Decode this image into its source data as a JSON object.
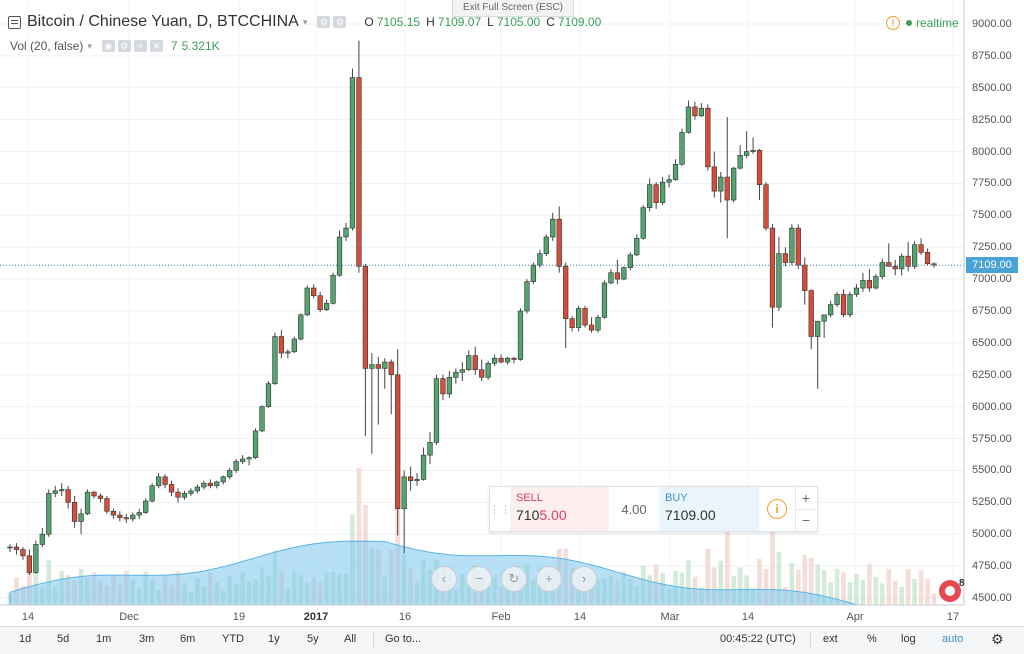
{
  "header": {
    "title": "Bitcoin / Chinese Yuan, D, BTCCHINA",
    "ohlc": [
      {
        "k": "O",
        "v": "7105.15"
      },
      {
        "k": "H",
        "v": "7109.07"
      },
      {
        "k": "L",
        "v": "7105.00"
      },
      {
        "k": "C",
        "v": "7109.00"
      }
    ],
    "exit_fullscreen": "Exit Full Screen (ESC)",
    "realtime": "realtime",
    "colors": {
      "up": "#53a46e",
      "down": "#d44f3b",
      "price_line": "#3a7ea8",
      "accent": "#4aa3d7"
    }
  },
  "volume": {
    "label": "Vol (20, false)",
    "count": "7",
    "value": "5.321K"
  },
  "price_axis": {
    "labels": [
      "9000.00",
      "8750.00",
      "8500.00",
      "8250.00",
      "8000.00",
      "7750.00",
      "7500.00",
      "7250.00",
      "7000.00",
      "6750.00",
      "6500.00",
      "6250.00",
      "6000.00",
      "5750.00",
      "5500.00",
      "5250.00",
      "5000.00",
      "4750.00",
      "4500.00"
    ],
    "current_price": "7109.00"
  },
  "time_axis": {
    "labels": [
      {
        "t": "14",
        "x": 28
      },
      {
        "t": "Dec",
        "x": 129
      },
      {
        "t": "19",
        "x": 239
      },
      {
        "t": "2017",
        "x": 316,
        "bold": true
      },
      {
        "t": "16",
        "x": 405
      },
      {
        "t": "Feb",
        "x": 501
      },
      {
        "t": "14",
        "x": 580
      },
      {
        "t": "Mar",
        "x": 670
      },
      {
        "t": "14",
        "x": 748
      },
      {
        "t": "Apr",
        "x": 855
      },
      {
        "t": "17",
        "x": 953
      }
    ]
  },
  "trade": {
    "sell_label": "SELL",
    "sell_a": "710",
    "sell_b": "5.00",
    "spread": "4.00",
    "buy_label": "BUY",
    "buy_value": "7109.00",
    "plus": "+",
    "minus": "−"
  },
  "nav": [
    "‹",
    "−",
    "↻",
    "+",
    "›"
  ],
  "toolbar": {
    "ranges": [
      "1d",
      "5d",
      "1m",
      "3m",
      "6m",
      "YTD",
      "1y",
      "5y",
      "All"
    ],
    "goto": "Go to...",
    "clock": "00:45:22 (UTC)",
    "right": [
      "ext",
      "%",
      "log",
      "auto"
    ]
  },
  "badge": "8",
  "chart_data": {
    "type": "candlestick",
    "title": "Bitcoin / Chinese Yuan, D, BTCCHINA",
    "ylim": [
      4500,
      9000
    ],
    "candles": [
      [
        4900,
        4920,
        4860,
        4900
      ],
      [
        4900,
        4930,
        4840,
        4880
      ],
      [
        4880,
        4900,
        4800,
        4830
      ],
      [
        4830,
        4880,
        4680,
        4700
      ],
      [
        4700,
        4950,
        4690,
        4920
      ],
      [
        4920,
        5050,
        4900,
        5000
      ],
      [
        5000,
        5350,
        4980,
        5320
      ],
      [
        5320,
        5380,
        5290,
        5340
      ],
      [
        5340,
        5400,
        5300,
        5350
      ],
      [
        5350,
        5380,
        5200,
        5250
      ],
      [
        5250,
        5300,
        5050,
        5100
      ],
      [
        5100,
        5200,
        5000,
        5160
      ],
      [
        5160,
        5350,
        5150,
        5330
      ],
      [
        5330,
        5340,
        5280,
        5300
      ],
      [
        5300,
        5320,
        5250,
        5280
      ],
      [
        5280,
        5300,
        5160,
        5180
      ],
      [
        5180,
        5200,
        5120,
        5150
      ],
      [
        5150,
        5180,
        5100,
        5130
      ],
      [
        5130,
        5160,
        5090,
        5120
      ],
      [
        5120,
        5170,
        5100,
        5150
      ],
      [
        5150,
        5200,
        5120,
        5170
      ],
      [
        5170,
        5280,
        5160,
        5260
      ],
      [
        5260,
        5400,
        5250,
        5380
      ],
      [
        5380,
        5480,
        5360,
        5450
      ],
      [
        5450,
        5470,
        5360,
        5390
      ],
      [
        5390,
        5420,
        5300,
        5330
      ],
      [
        5330,
        5360,
        5250,
        5290
      ],
      [
        5290,
        5340,
        5270,
        5320
      ],
      [
        5320,
        5360,
        5300,
        5340
      ],
      [
        5340,
        5390,
        5320,
        5370
      ],
      [
        5370,
        5420,
        5350,
        5400
      ],
      [
        5400,
        5430,
        5360,
        5380
      ],
      [
        5380,
        5420,
        5360,
        5410
      ],
      [
        5410,
        5460,
        5390,
        5450
      ],
      [
        5450,
        5520,
        5430,
        5500
      ],
      [
        5500,
        5590,
        5480,
        5570
      ],
      [
        5570,
        5620,
        5550,
        5590
      ],
      [
        5590,
        5610,
        5540,
        5600
      ],
      [
        5600,
        5830,
        5590,
        5810
      ],
      [
        5810,
        6010,
        5800,
        6000
      ],
      [
        6000,
        6200,
        5990,
        6180
      ],
      [
        6180,
        6580,
        6170,
        6550
      ],
      [
        6550,
        6600,
        6380,
        6420
      ],
      [
        6420,
        6450,
        6380,
        6430
      ],
      [
        6430,
        6550,
        6420,
        6530
      ],
      [
        6530,
        6730,
        6520,
        6720
      ],
      [
        6720,
        6950,
        6710,
        6930
      ],
      [
        6930,
        6960,
        6850,
        6870
      ],
      [
        6870,
        6900,
        6740,
        6760
      ],
      [
        6760,
        6840,
        6750,
        6810
      ],
      [
        6810,
        7050,
        6800,
        7030
      ],
      [
        7030,
        7380,
        7020,
        7330
      ],
      [
        7330,
        7440,
        7300,
        7400
      ],
      [
        7400,
        8650,
        7380,
        8580
      ],
      [
        8580,
        8870,
        7050,
        7100
      ],
      [
        7100,
        7120,
        5770,
        6300
      ],
      [
        6300,
        6420,
        5630,
        6330
      ],
      [
        6330,
        6390,
        5860,
        6300
      ],
      [
        6300,
        6380,
        6140,
        6350
      ],
      [
        6350,
        6370,
        5940,
        6250
      ],
      [
        6250,
        6450,
        4990,
        5200
      ],
      [
        5200,
        5500,
        4850,
        5450
      ],
      [
        5450,
        5530,
        5340,
        5420
      ],
      [
        5420,
        5480,
        5380,
        5430
      ],
      [
        5430,
        5680,
        5420,
        5620
      ],
      [
        5620,
        5800,
        5550,
        5720
      ],
      [
        5720,
        6250,
        5700,
        6220
      ],
      [
        6220,
        6250,
        6050,
        6100
      ],
      [
        6100,
        6280,
        6070,
        6230
      ],
      [
        6230,
        6300,
        6180,
        6270
      ],
      [
        6270,
        6350,
        6200,
        6290
      ],
      [
        6290,
        6440,
        6280,
        6400
      ],
      [
        6400,
        6470,
        6250,
        6290
      ],
      [
        6290,
        6370,
        6200,
        6230
      ],
      [
        6230,
        6360,
        6210,
        6340
      ],
      [
        6340,
        6410,
        6320,
        6380
      ],
      [
        6380,
        6410,
        6340,
        6350
      ],
      [
        6350,
        6390,
        6330,
        6380
      ],
      [
        6380,
        6390,
        6340,
        6370
      ],
      [
        6370,
        6770,
        6360,
        6750
      ],
      [
        6750,
        7000,
        6730,
        6980
      ],
      [
        6980,
        7130,
        6960,
        7110
      ],
      [
        7110,
        7230,
        7090,
        7200
      ],
      [
        7200,
        7350,
        7180,
        7330
      ],
      [
        7330,
        7520,
        7300,
        7470
      ],
      [
        7470,
        7570,
        7050,
        7100
      ],
      [
        7100,
        7130,
        6460,
        6690
      ],
      [
        6690,
        6710,
        6590,
        6620
      ],
      [
        6620,
        6790,
        6590,
        6770
      ],
      [
        6770,
        6790,
        6620,
        6640
      ],
      [
        6640,
        6700,
        6580,
        6600
      ],
      [
        6600,
        6720,
        6580,
        6700
      ],
      [
        6700,
        6990,
        6690,
        6970
      ],
      [
        6970,
        7080,
        6960,
        7050
      ],
      [
        7050,
        7150,
        6960,
        7000
      ],
      [
        7000,
        7100,
        6990,
        7090
      ],
      [
        7090,
        7210,
        7070,
        7190
      ],
      [
        7190,
        7350,
        7180,
        7320
      ],
      [
        7320,
        7580,
        7310,
        7560
      ],
      [
        7560,
        7790,
        7530,
        7740
      ],
      [
        7740,
        7760,
        7550,
        7600
      ],
      [
        7600,
        7800,
        7580,
        7760
      ],
      [
        7760,
        7820,
        7720,
        7780
      ],
      [
        7780,
        7940,
        7770,
        7900
      ],
      [
        7900,
        8180,
        7890,
        8150
      ],
      [
        8150,
        8400,
        8140,
        8350
      ],
      [
        8350,
        8390,
        8250,
        8280
      ],
      [
        8280,
        8380,
        8270,
        8340
      ],
      [
        8340,
        8370,
        7850,
        7880
      ],
      [
        7880,
        8000,
        7640,
        7690
      ],
      [
        7690,
        7840,
        7600,
        7800
      ],
      [
        7800,
        8270,
        7320,
        7620
      ],
      [
        7620,
        7880,
        7600,
        7870
      ],
      [
        7870,
        8050,
        7860,
        7970
      ],
      [
        7970,
        8160,
        7950,
        8000
      ],
      [
        8000,
        8110,
        7980,
        8010
      ],
      [
        8010,
        8020,
        7620,
        7740
      ],
      [
        7740,
        7760,
        7380,
        7400
      ],
      [
        7400,
        7430,
        6620,
        6780
      ],
      [
        6780,
        7330,
        6750,
        7200
      ],
      [
        7200,
        7250,
        7100,
        7130
      ],
      [
        7130,
        7430,
        7110,
        7400
      ],
      [
        7400,
        7430,
        7080,
        7110
      ],
      [
        7110,
        7170,
        6800,
        6910
      ],
      [
        6910,
        6920,
        6450,
        6550
      ],
      [
        6550,
        6650,
        6140,
        6670
      ],
      [
        6670,
        6720,
        6540,
        6720
      ],
      [
        6720,
        6830,
        6700,
        6800
      ],
      [
        6800,
        6900,
        6780,
        6880
      ],
      [
        6880,
        6920,
        6700,
        6720
      ],
      [
        6720,
        6900,
        6700,
        6880
      ],
      [
        6880,
        6960,
        6860,
        6930
      ],
      [
        6930,
        7050,
        6900,
        6990
      ],
      [
        6990,
        7080,
        6900,
        6930
      ],
      [
        6930,
        7040,
        6920,
        7020
      ],
      [
        7020,
        7160,
        7000,
        7130
      ],
      [
        7130,
        7280,
        7110,
        7100
      ],
      [
        7100,
        7150,
        7030,
        7080
      ],
      [
        7080,
        7200,
        7030,
        7180
      ],
      [
        7180,
        7290,
        7060,
        7100
      ],
      [
        7100,
        7300,
        7080,
        7270
      ],
      [
        7270,
        7320,
        7190,
        7210
      ],
      [
        7210,
        7240,
        7110,
        7120
      ],
      [
        7120,
        7130,
        7090,
        7110
      ]
    ]
  }
}
